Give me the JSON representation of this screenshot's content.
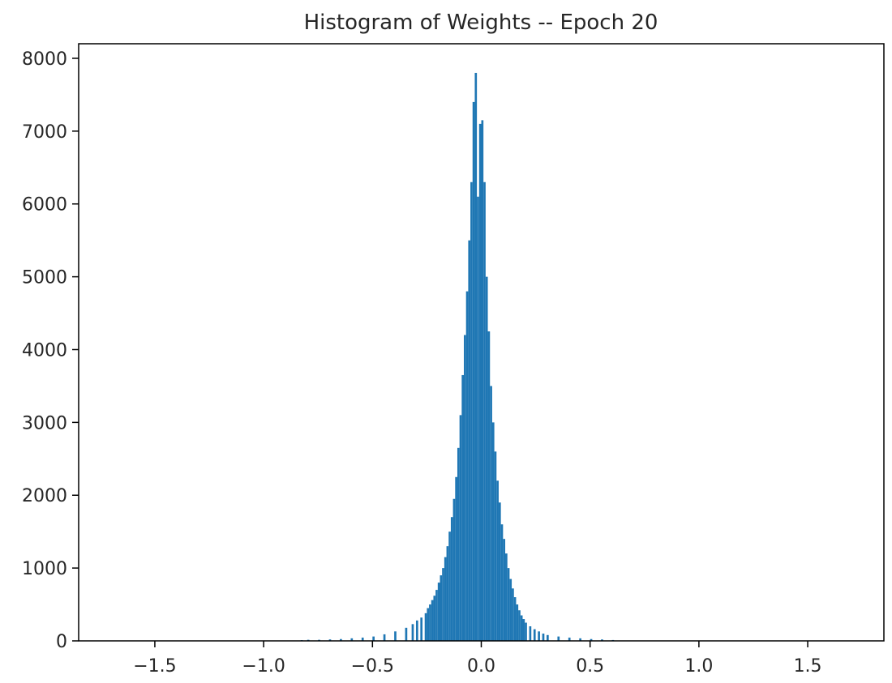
{
  "chart_data": {
    "type": "bar",
    "title": "Histogram of Weights -- Epoch 20",
    "xlabel": "",
    "ylabel": "",
    "xlim": [
      -1.85,
      1.85
    ],
    "ylim": [
      0,
      8200
    ],
    "x_ticks": [
      -1.5,
      -1.0,
      -0.5,
      0.0,
      0.5,
      1.0,
      1.5
    ],
    "x_tick_labels": [
      "−1.5",
      "−1.0",
      "−0.5",
      "0.0",
      "0.5",
      "1.0",
      "1.5"
    ],
    "y_ticks": [
      0,
      1000,
      2000,
      3000,
      4000,
      5000,
      6000,
      7000,
      8000
    ],
    "y_tick_labels": [
      "0",
      "1000",
      "2000",
      "3000",
      "4000",
      "5000",
      "6000",
      "7000",
      "8000"
    ],
    "bar_color": "#1f77b4",
    "grid": false,
    "bin_width": 0.01,
    "bins": [
      [
        -0.83,
        10
      ],
      [
        -0.8,
        15
      ],
      [
        -0.75,
        15
      ],
      [
        -0.7,
        20
      ],
      [
        -0.65,
        25
      ],
      [
        -0.6,
        35
      ],
      [
        -0.55,
        45
      ],
      [
        -0.5,
        60
      ],
      [
        -0.45,
        90
      ],
      [
        -0.4,
        130
      ],
      [
        -0.35,
        180
      ],
      [
        -0.32,
        230
      ],
      [
        -0.3,
        280
      ],
      [
        -0.28,
        320
      ],
      [
        -0.26,
        380
      ],
      [
        -0.25,
        450
      ],
      [
        -0.24,
        500
      ],
      [
        -0.23,
        560
      ],
      [
        -0.22,
        620
      ],
      [
        -0.21,
        700
      ],
      [
        -0.2,
        800
      ],
      [
        -0.19,
        900
      ],
      [
        -0.18,
        1000
      ],
      [
        -0.17,
        1150
      ],
      [
        -0.16,
        1300
      ],
      [
        -0.15,
        1500
      ],
      [
        -0.14,
        1700
      ],
      [
        -0.13,
        1950
      ],
      [
        -0.12,
        2250
      ],
      [
        -0.11,
        2650
      ],
      [
        -0.1,
        3100
      ],
      [
        -0.09,
        3650
      ],
      [
        -0.08,
        4200
      ],
      [
        -0.07,
        4800
      ],
      [
        -0.06,
        5500
      ],
      [
        -0.05,
        6300
      ],
      [
        -0.04,
        7400
      ],
      [
        -0.03,
        7800
      ],
      [
        -0.02,
        6100
      ],
      [
        -0.01,
        7100
      ],
      [
        0.0,
        7150
      ],
      [
        0.01,
        6300
      ],
      [
        0.02,
        5000
      ],
      [
        0.03,
        4250
      ],
      [
        0.04,
        3500
      ],
      [
        0.05,
        3000
      ],
      [
        0.06,
        2600
      ],
      [
        0.07,
        2200
      ],
      [
        0.08,
        1900
      ],
      [
        0.09,
        1600
      ],
      [
        0.1,
        1400
      ],
      [
        0.11,
        1200
      ],
      [
        0.12,
        1000
      ],
      [
        0.13,
        850
      ],
      [
        0.14,
        720
      ],
      [
        0.15,
        600
      ],
      [
        0.16,
        500
      ],
      [
        0.17,
        420
      ],
      [
        0.18,
        350
      ],
      [
        0.19,
        300
      ],
      [
        0.2,
        250
      ],
      [
        0.22,
        200
      ],
      [
        0.24,
        160
      ],
      [
        0.26,
        130
      ],
      [
        0.28,
        100
      ],
      [
        0.3,
        80
      ],
      [
        0.35,
        60
      ],
      [
        0.4,
        45
      ],
      [
        0.45,
        35
      ],
      [
        0.5,
        25
      ],
      [
        0.55,
        20
      ],
      [
        0.6,
        12
      ]
    ]
  }
}
